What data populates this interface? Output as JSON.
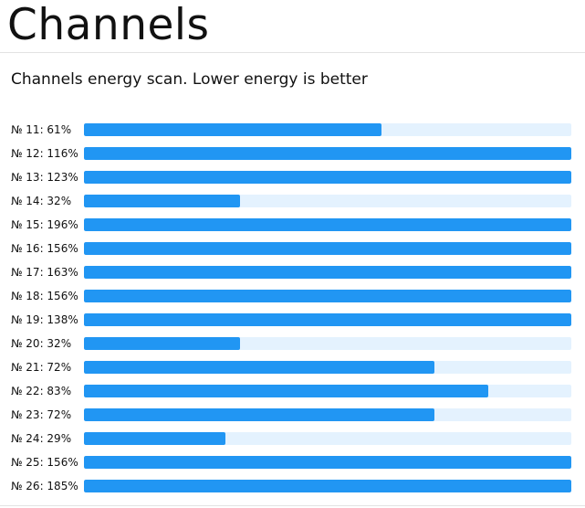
{
  "header": {
    "title": "Channels"
  },
  "main": {
    "subtitle": "Channels energy scan. Lower energy is better",
    "colors": {
      "bar_fill": "#2196f3",
      "bar_track": "#e4f2fe"
    },
    "channels": [
      {
        "label": "№ 11: 61%",
        "percent": 61
      },
      {
        "label": "№ 12: 116%",
        "percent": 116
      },
      {
        "label": "№ 13: 123%",
        "percent": 123
      },
      {
        "label": "№ 14: 32%",
        "percent": 32
      },
      {
        "label": "№ 15: 196%",
        "percent": 196
      },
      {
        "label": "№ 16: 156%",
        "percent": 156
      },
      {
        "label": "№ 17: 163%",
        "percent": 163
      },
      {
        "label": "№ 18: 156%",
        "percent": 156
      },
      {
        "label": "№ 19: 138%",
        "percent": 138
      },
      {
        "label": "№ 20: 32%",
        "percent": 32
      },
      {
        "label": "№ 21: 72%",
        "percent": 72
      },
      {
        "label": "№ 22: 83%",
        "percent": 83
      },
      {
        "label": "№ 23: 72%",
        "percent": 72
      },
      {
        "label": "№ 24: 29%",
        "percent": 29
      },
      {
        "label": "№ 25: 156%",
        "percent": 156
      },
      {
        "label": "№ 26: 185%",
        "percent": 185
      }
    ]
  }
}
